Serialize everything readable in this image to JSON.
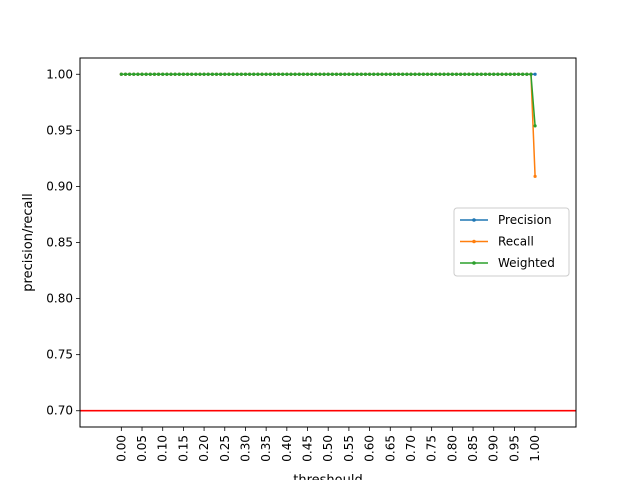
{
  "chart_data": {
    "type": "line",
    "xlabel": "threshould",
    "ylabel": "precision/recall",
    "xlim": [
      -0.0999,
      1.0989
    ],
    "ylim": [
      0.6855,
      1.0145
    ],
    "x_ticks": [
      "0.00",
      "0.05",
      "0.10",
      "0.15",
      "0.20",
      "0.25",
      "0.30",
      "0.35",
      "0.40",
      "0.45",
      "0.50",
      "0.55",
      "0.60",
      "0.65",
      "0.70",
      "0.75",
      "0.80",
      "0.85",
      "0.90",
      "0.95",
      "1.00"
    ],
    "y_ticks": [
      "0.70",
      "0.75",
      "0.80",
      "0.85",
      "0.90",
      "0.95",
      "1.00"
    ],
    "x_start": 0.0,
    "x_step": 0.01,
    "n_points": 101,
    "series": [
      {
        "name": "Precision",
        "color": "#1f77b4",
        "values_rule": "1.0 for all points",
        "last_value": 1.0
      },
      {
        "name": "Recall",
        "color": "#ff7f0e",
        "values_rule": "1.0 except last",
        "last_value": 0.909
      },
      {
        "name": "Weighted",
        "color": "#2ca02c",
        "values_rule": "1.0 except last",
        "last_value": 0.954
      }
    ],
    "hline": {
      "y": 0.7,
      "color": "#ff0000"
    },
    "legend_position": "center-right",
    "grid": false
  }
}
